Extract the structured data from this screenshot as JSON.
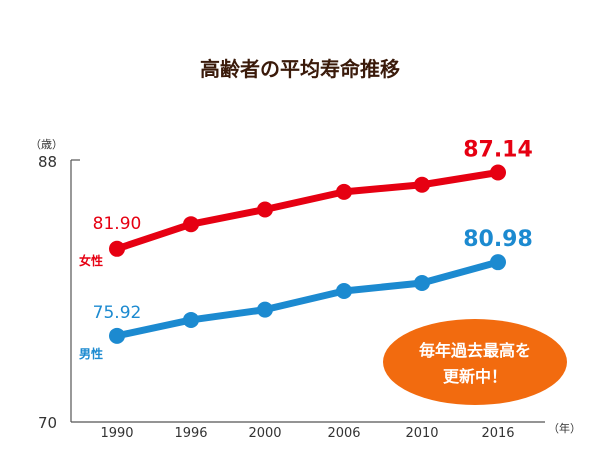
{
  "chart_data": {
    "type": "line",
    "title": "高齢者の平均寿命推移",
    "ylabel": "（歳）",
    "xlabel": "（年）",
    "ylim": [
      70,
      88
    ],
    "yticks": [
      "88",
      "70"
    ],
    "categories": [
      "1990",
      "1996",
      "2000",
      "2006",
      "2010",
      "2016"
    ],
    "series": [
      {
        "name": "女性",
        "color": "#e60012",
        "values": [
          81.9,
          83.59,
          84.6,
          85.81,
          86.3,
          87.14
        ],
        "first_label": "81.90",
        "last_label": "87.14"
      },
      {
        "name": "男性",
        "color": "#1c8ad0",
        "values": [
          75.92,
          77.01,
          77.72,
          79.0,
          79.55,
          80.98
        ],
        "first_label": "75.92",
        "last_label": "80.98"
      }
    ],
    "annotation": {
      "line1": "毎年過去最高を",
      "line2": "更新中！",
      "color": "#f26b0f"
    }
  }
}
